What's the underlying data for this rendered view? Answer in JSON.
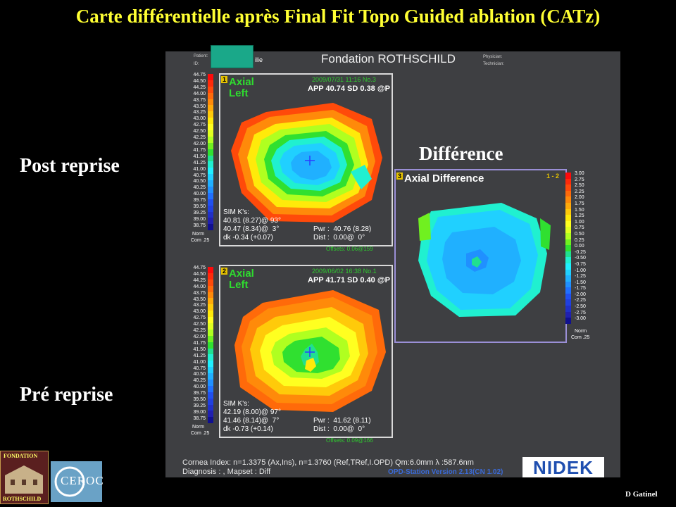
{
  "slide": {
    "title": "Carte différentielle après Final Fit Topo Guided ablation (CATz)",
    "label_post": "Post reprise",
    "label_pre": "Pré reprise",
    "label_diff": "Différence",
    "author": "D Gatinel"
  },
  "header": {
    "patient_label": "Patient:",
    "patient_value": "ilie",
    "id_label": "ID:",
    "title": "Fondation ROTHSCHILD",
    "physician_label": "Physician:",
    "technician_label": "Technician:"
  },
  "scale_main": {
    "labels": [
      "44.75",
      "44.50",
      "44.25",
      "44.00",
      "43.75",
      "43.50",
      "43.25",
      "43.00",
      "42.75",
      "42.50",
      "42.25",
      "42.00",
      "41.75",
      "41.50",
      "41.25",
      "41.00",
      "40.75",
      "40.50",
      "40.25",
      "40.00",
      "39.75",
      "39.50",
      "39.25",
      "39.00",
      "38.75"
    ],
    "footer_norm": "Norm",
    "footer_com": "Com .25",
    "colors": [
      "#ff0a0a",
      "#ff2a0a",
      "#ff4a0a",
      "#ff6a0a",
      "#ff8a0a",
      "#ffaa0a",
      "#ffca0a",
      "#ffea0a",
      "#ffff20",
      "#e0ff20",
      "#b0ff20",
      "#70f020",
      "#30e030",
      "#20e090",
      "#20f0d0",
      "#20f0ff",
      "#20d0ff",
      "#20b0ff",
      "#2090ff",
      "#2070ff",
      "#2050f0",
      "#2040e0",
      "#2030c8",
      "#2020b0",
      "#101090"
    ]
  },
  "map_post": {
    "number": "1",
    "type_line1": "Axial",
    "type_line2": "Left",
    "date": "2009/07/31 11:16 No.3",
    "app": "APP 40.74  SD 0.38  @P",
    "sim_title": "SIM K's:",
    "sim_k1": "40.81 (8.27)@ 93°",
    "sim_k2": "40.47 (8.34)@  3°",
    "dk": "dk -0.34 (+0.07)",
    "pwr": "Pwr :  40.76 (8.28)",
    "dist": "Dist :  0.00@  0°",
    "offsets": "Offsets: 0.06@159"
  },
  "map_pre": {
    "number": "2",
    "type_line1": "Axial",
    "type_line2": "Left",
    "date": "2009/06/02 16:38 No.1",
    "app": "APP 41.71  SD 0.40  @P",
    "sim_title": "SIM K's:",
    "sim_k1": "42.19 (8.00)@ 97°",
    "sim_k2": "41.46 (8.14)@  7°",
    "dk": "dk -0.73 (+0.14)",
    "pwr": "Pwr :  41.62 (8.11)",
    "dist": "Dist :  0.00@  0°",
    "offsets": "Offsets: 0.09@166"
  },
  "map_diff": {
    "number": "3",
    "title": "Axial Difference",
    "tag": "1 - 2"
  },
  "scale_diff": {
    "labels": [
      "3.00",
      "2.75",
      "2.50",
      "2.25",
      "2.00",
      "1.75",
      "1.50",
      "1.25",
      "1.00",
      "0.75",
      "0.50",
      "0.25",
      "0.00",
      "-0.25",
      "-0.50",
      "-0.75",
      "-1.00",
      "-1.25",
      "-1.50",
      "-1.75",
      "-2.00",
      "-2.25",
      "-2.50",
      "-2.75",
      "-3.00"
    ],
    "footer_norm": "Norm",
    "footer_com": "Com .25",
    "colors": [
      "#ff0a0a",
      "#ff2a0a",
      "#ff4a0a",
      "#ff6a0a",
      "#ff8a0a",
      "#ffaa0a",
      "#ffca0a",
      "#ffea0a",
      "#ffff20",
      "#e0ff20",
      "#b0ff20",
      "#70f020",
      "#30e030",
      "#20e090",
      "#20f0d0",
      "#20f0ff",
      "#20d0ff",
      "#20b0ff",
      "#2090ff",
      "#2070ff",
      "#2050f0",
      "#2040e0",
      "#2030c8",
      "#2020b0",
      "#101090"
    ]
  },
  "footer": {
    "cornea_index": "Cornea Index: n=1.3375 (Ax,Ins), n=1.3760 (Ref,TRef,I.OPD)  Qm:6.0mm  λ :587.6nm",
    "diagnosis": "Diagnosis : , Mapset : Diff",
    "version": "OPD-Station Version 2.13(CN 1.02)",
    "nidek": "NIDEK"
  },
  "logos": {
    "fondation_top": "FONDATION",
    "fondation_bottom": "ROTHSCHILD",
    "ceroc": "CEROC"
  }
}
